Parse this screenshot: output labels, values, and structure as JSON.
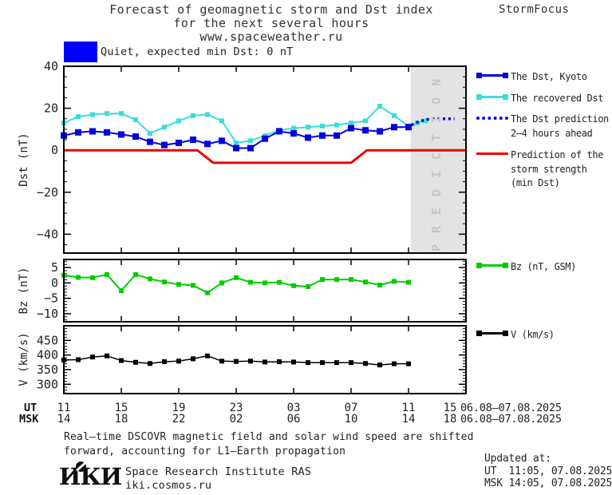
{
  "header": {
    "title_line1": "Forecast of geomagnetic storm and Dst index",
    "title_line2": "for the next several hours",
    "title_line3": "www.spaceweather.ru",
    "brand": "StormFocus"
  },
  "status": {
    "label": "Quiet, expected min Dst: 0 nT",
    "box_color": "#0000ff"
  },
  "prediction_watermark": "PREDICTION",
  "legend_main": [
    {
      "label_lines": [
        "The Dst, Kyoto"
      ],
      "color": "#0000dd",
      "style": "solid-squares"
    },
    {
      "label_lines": [
        "The recovered Dst"
      ],
      "color": "#3adcdc",
      "style": "solid-squares"
    },
    {
      "label_lines": [
        "The Dst prediction",
        "2–4 hours ahead"
      ],
      "color": "#0000dd",
      "style": "dotted"
    },
    {
      "label_lines": [
        "Prediction of the",
        "storm strength",
        "(min Dst)"
      ],
      "color": "#ee0000",
      "style": "solid"
    }
  ],
  "legend_bz": {
    "label": "Bz (nT, GSM)",
    "color": "#00cc00"
  },
  "legend_v": {
    "label": "V (km/s)",
    "color": "#000000"
  },
  "x_axis": {
    "ut_prefix": "UT",
    "msk_prefix": "MSK",
    "ut_labels": [
      "11",
      "15",
      "19",
      "23",
      "03",
      "07",
      "11",
      "15"
    ],
    "msk_labels": [
      "14",
      "18",
      "22",
      "02",
      "06",
      "10",
      "14",
      "18"
    ],
    "ut_date": "06.08–07.08.2025",
    "msk_date": "06.08–07.08.2025"
  },
  "footer": {
    "note_line1": "Real–time DSCOVR magnetic field and solar wind speed are shifted",
    "note_line2": "forward, accounting for L1–Earth propagation",
    "logo": "ИКИ",
    "institute": "Space Research Institute RAS",
    "website": "iki.cosmos.ru",
    "updated_label": "Updated at:",
    "updated_ut": "UT  11:05, 07.08.2025",
    "updated_msk": "MSK 14:05, 07.08.2025"
  },
  "chart_data": [
    {
      "type": "line",
      "name": "dst-panel",
      "ylabel": "Dst (nT)",
      "ylim": [
        -49,
        40
      ],
      "yticks": [
        40,
        20,
        0,
        -20,
        -40
      ],
      "yminor_step": 5,
      "xlim_hours": [
        0,
        28
      ],
      "x_note": "hours after 11 UT 06.08.2025, major ticks every 4 h",
      "prediction_region": [
        24.15,
        28
      ],
      "series": [
        {
          "name": "The recovered Dst",
          "color": "#3adcdc",
          "width": 2,
          "marker": true,
          "marker_size": 6,
          "x": [
            0,
            1,
            2,
            3,
            4,
            5,
            6,
            7,
            8,
            9,
            10,
            11,
            12,
            13,
            14,
            15,
            16,
            17,
            18,
            19,
            20,
            21,
            22,
            23,
            24,
            24.6,
            25.2
          ],
          "y": [
            13,
            16,
            17,
            17.5,
            17.5,
            14.5,
            8,
            11,
            14,
            16.5,
            17,
            14,
            3.5,
            4.5,
            7,
            9.5,
            10.5,
            11,
            11.5,
            12,
            13,
            14,
            21,
            16.5,
            11.5,
            13,
            14
          ]
        },
        {
          "name": "The Dst, Kyoto",
          "color": "#0000dd",
          "width": 2,
          "marker": true,
          "marker_size": 8,
          "x": [
            0,
            1,
            2,
            3,
            4,
            5,
            6,
            7,
            8,
            9,
            10,
            11,
            12,
            13,
            14,
            15,
            16,
            17,
            18,
            19,
            20,
            21,
            22,
            23,
            24
          ],
          "y": [
            7,
            8.5,
            9,
            8.5,
            7.5,
            6.5,
            4,
            2.5,
            3.5,
            5,
            3,
            4.5,
            1,
            1,
            5.5,
            9,
            8,
            6,
            7,
            7,
            10.5,
            9.5,
            9,
            11,
            11
          ]
        },
        {
          "name": "The Dst prediction 2–4 hours ahead",
          "color": "#0000dd",
          "width": 3.5,
          "style": "dotted",
          "x": [
            24.2,
            24.5,
            24.8,
            25.1,
            25.4,
            25.7,
            26,
            26.3,
            26.6,
            26.9,
            27.2
          ],
          "y": [
            12,
            13,
            13.8,
            14.4,
            14.8,
            15,
            15,
            15,
            15,
            15,
            15
          ]
        },
        {
          "name": "Prediction of the storm strength (min Dst)",
          "color": "#ee0000",
          "width": 3,
          "x": [
            0,
            9.3,
            10.4,
            20,
            21.1,
            28
          ],
          "y": [
            0,
            0,
            -6,
            -6,
            0,
            0
          ]
        }
      ]
    },
    {
      "type": "line",
      "name": "bz-panel",
      "ylabel": "Bz (nT)",
      "ylim": [
        -12.6,
        7.6
      ],
      "yticks": [
        5,
        0,
        -5,
        -10
      ],
      "yminor_step": 1,
      "xlim_hours": [
        0,
        28
      ],
      "series": [
        {
          "name": "Bz (nT, GSM)",
          "color": "#00cc00",
          "width": 2,
          "marker": true,
          "marker_size": 6,
          "x": [
            0,
            1,
            2,
            3,
            4,
            5,
            6,
            7,
            8,
            9,
            10,
            11,
            12,
            13,
            14,
            15,
            16,
            17,
            18,
            19,
            20,
            21,
            22,
            23,
            24
          ],
          "y": [
            2.5,
            1.8,
            1.7,
            2.7,
            -2.5,
            2.7,
            1.3,
            0.3,
            -0.5,
            -0.8,
            -3.2,
            0,
            1.7,
            0.2,
            0,
            0.2,
            -0.9,
            -1.2,
            1.1,
            1.1,
            1.1,
            0.3,
            -0.7,
            0.5,
            0.2
          ]
        }
      ]
    },
    {
      "type": "line",
      "name": "v-panel",
      "ylabel": "V (km/s)",
      "ylim": [
        268,
        500
      ],
      "yticks": [
        450,
        400,
        350,
        300
      ],
      "yminor_step": 10,
      "xlim_hours": [
        0,
        28
      ],
      "series": [
        {
          "name": "V (km/s)",
          "color": "#000000",
          "width": 1.5,
          "marker": true,
          "marker_size": 6,
          "x": [
            0,
            1,
            2,
            3,
            4,
            5,
            6,
            7,
            8,
            9,
            10,
            11,
            12,
            13,
            14,
            15,
            16,
            17,
            18,
            19,
            20,
            21,
            22,
            23,
            24
          ],
          "y": [
            383,
            384,
            393,
            397,
            381,
            375,
            371,
            377,
            379,
            387,
            397,
            379,
            378,
            379,
            376,
            377,
            376,
            374,
            374,
            374,
            374,
            371,
            366,
            370,
            370
          ]
        }
      ]
    }
  ]
}
